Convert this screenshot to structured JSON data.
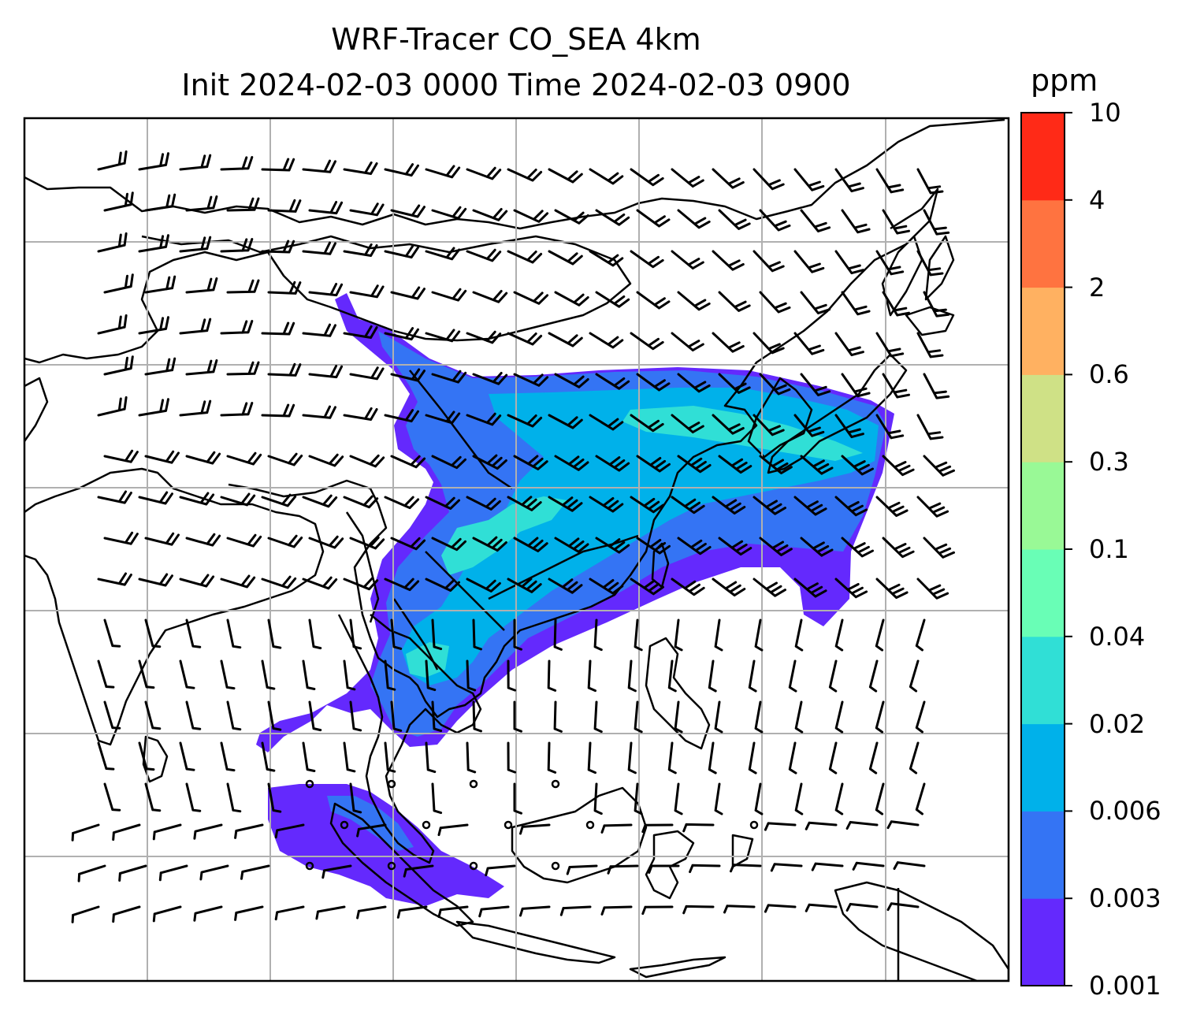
{
  "title": {
    "line1": "WRF-Tracer CO_SEA 4km",
    "line2": "Init 2024-02-03 0000 Time 2024-02-03 0900"
  },
  "colorbar": {
    "unit": "ppm",
    "levels": [
      "0.001",
      "0.003",
      "0.006",
      "0.02",
      "0.04",
      "0.1",
      "0.3",
      "0.6",
      "2",
      "4",
      "10"
    ],
    "colors": [
      "#6429fd",
      "#3474f4",
      "#00b1ea",
      "#30dfd6",
      "#69feb6",
      "#99f996",
      "#cfe186",
      "#ffb161",
      "#ff7340",
      "#ff2a17"
    ]
  },
  "map": {
    "gridlines": true,
    "coastlines": true,
    "wind_barbs": true,
    "plume_colors": {
      "low": "#6429fd",
      "mid": "#3474f4",
      "high": "#00b1ea",
      "peak": "#30dfd6"
    }
  }
}
